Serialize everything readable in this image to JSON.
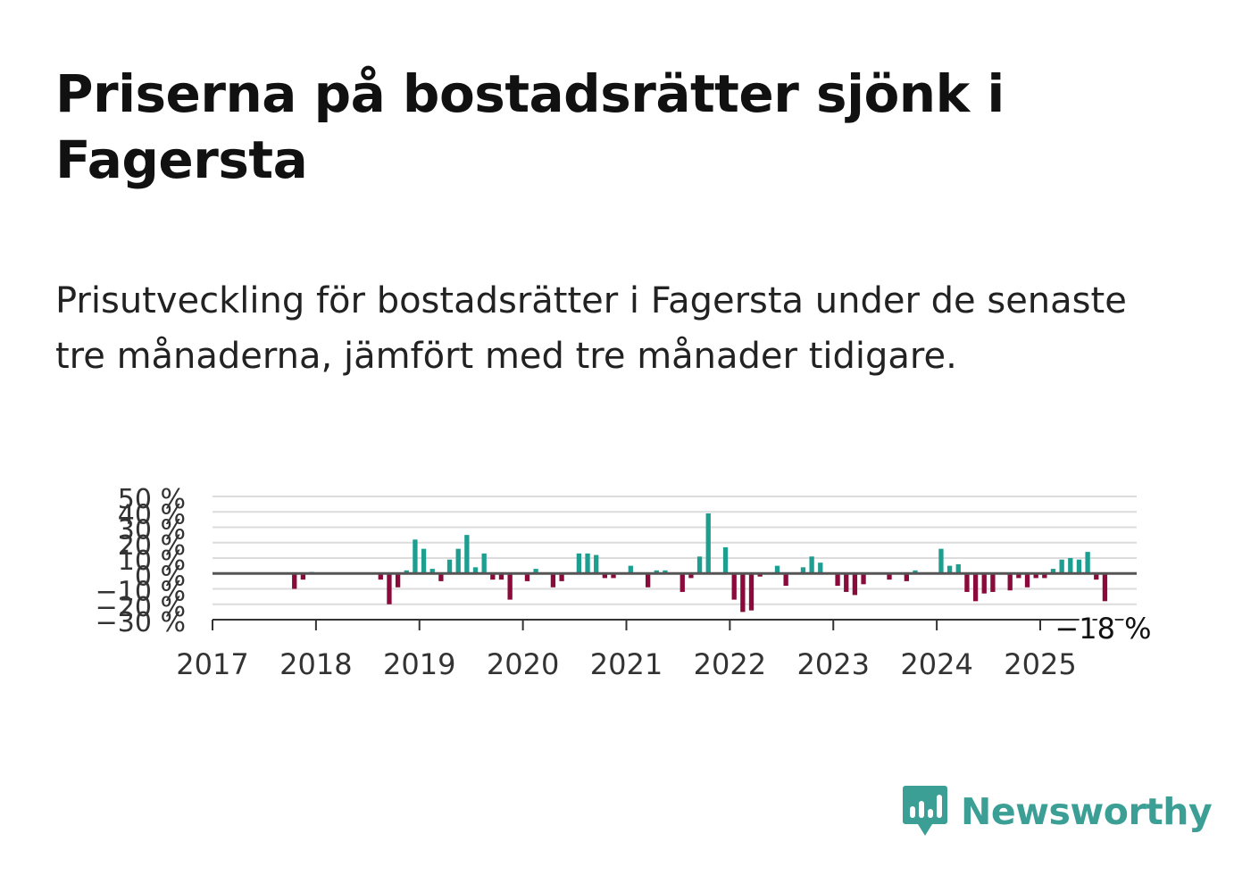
{
  "header": {
    "title": "Priserna på bostadsrätter sjönk i Fagersta",
    "subtitle": "Prisutveckling för bostadsrätter i Fagersta under de senaste tre månaderna, jämfört med tre månader tidigare."
  },
  "brand": {
    "name": "Newsworthy",
    "icon": "newsworthy-logo-icon",
    "color": "#3c9f95"
  },
  "colors": {
    "positive": "#1e9e91",
    "negative": "#8a0a3c",
    "grid": "#dcdcdc",
    "zero_line": "#555555"
  },
  "chart_data": {
    "type": "bar",
    "x_unit": "month",
    "x_start": "2017-01",
    "x_ticks": [
      "2017",
      "2018",
      "2019",
      "2020",
      "2021",
      "2022",
      "2023",
      "2024",
      "2025"
    ],
    "y_ticks": [
      "50 %",
      "40 %",
      "30 %",
      "20 %",
      "10 %",
      "0 %",
      "−10 %",
      "−20 %",
      "−30 %"
    ],
    "ylim": [
      -30,
      50
    ],
    "grid": true,
    "last_label": "−18 %",
    "series": [
      {
        "points": [
          {
            "x": "2017-10",
            "y": -10
          },
          {
            "x": "2017-11",
            "y": -4
          },
          {
            "x": "2017-12",
            "y": 1
          },
          {
            "x": "2018-08",
            "y": -4
          },
          {
            "x": "2018-09",
            "y": -20
          },
          {
            "x": "2018-10",
            "y": -9
          },
          {
            "x": "2018-11",
            "y": 2
          },
          {
            "x": "2018-12",
            "y": 22
          },
          {
            "x": "2019-01",
            "y": 16
          },
          {
            "x": "2019-02",
            "y": 3
          },
          {
            "x": "2019-03",
            "y": -5
          },
          {
            "x": "2019-04",
            "y": 9
          },
          {
            "x": "2019-05",
            "y": 16
          },
          {
            "x": "2019-06",
            "y": 25
          },
          {
            "x": "2019-07",
            "y": 4
          },
          {
            "x": "2019-08",
            "y": 13
          },
          {
            "x": "2019-09",
            "y": -4
          },
          {
            "x": "2019-10",
            "y": -4
          },
          {
            "x": "2019-11",
            "y": -17
          },
          {
            "x": "2020-01",
            "y": -5
          },
          {
            "x": "2020-02",
            "y": 3
          },
          {
            "x": "2020-04",
            "y": -9
          },
          {
            "x": "2020-05",
            "y": -5
          },
          {
            "x": "2020-07",
            "y": 13
          },
          {
            "x": "2020-08",
            "y": 13
          },
          {
            "x": "2020-09",
            "y": 12
          },
          {
            "x": "2020-10",
            "y": -3
          },
          {
            "x": "2020-11",
            "y": -3
          },
          {
            "x": "2021-01",
            "y": 5
          },
          {
            "x": "2021-03",
            "y": -9
          },
          {
            "x": "2021-04",
            "y": 2
          },
          {
            "x": "2021-05",
            "y": 2
          },
          {
            "x": "2021-07",
            "y": -12
          },
          {
            "x": "2021-08",
            "y": -3
          },
          {
            "x": "2021-09",
            "y": 11
          },
          {
            "x": "2021-10",
            "y": 39
          },
          {
            "x": "2021-12",
            "y": 17
          },
          {
            "x": "2022-01",
            "y": -17
          },
          {
            "x": "2022-02",
            "y": -25
          },
          {
            "x": "2022-03",
            "y": -24
          },
          {
            "x": "2022-04",
            "y": -2
          },
          {
            "x": "2022-06",
            "y": 5
          },
          {
            "x": "2022-07",
            "y": -8
          },
          {
            "x": "2022-09",
            "y": 4
          },
          {
            "x": "2022-10",
            "y": 11
          },
          {
            "x": "2022-11",
            "y": 7
          },
          {
            "x": "2023-01",
            "y": -8
          },
          {
            "x": "2023-02",
            "y": -12
          },
          {
            "x": "2023-03",
            "y": -14
          },
          {
            "x": "2023-04",
            "y": -7
          },
          {
            "x": "2023-07",
            "y": -4
          },
          {
            "x": "2023-09",
            "y": -5
          },
          {
            "x": "2023-10",
            "y": 2
          },
          {
            "x": "2024-01",
            "y": 16
          },
          {
            "x": "2024-02",
            "y": 5
          },
          {
            "x": "2024-03",
            "y": 6
          },
          {
            "x": "2024-04",
            "y": -12
          },
          {
            "x": "2024-05",
            "y": -18
          },
          {
            "x": "2024-06",
            "y": -13
          },
          {
            "x": "2024-07",
            "y": -12
          },
          {
            "x": "2024-09",
            "y": -11
          },
          {
            "x": "2024-10",
            "y": -3
          },
          {
            "x": "2024-11",
            "y": -9
          },
          {
            "x": "2024-12",
            "y": -3
          },
          {
            "x": "2025-01",
            "y": -3
          },
          {
            "x": "2025-02",
            "y": 3
          },
          {
            "x": "2025-03",
            "y": 9
          },
          {
            "x": "2025-04",
            "y": 10
          },
          {
            "x": "2025-05",
            "y": 9
          },
          {
            "x": "2025-06",
            "y": 14
          },
          {
            "x": "2025-07",
            "y": -4
          },
          {
            "x": "2025-08",
            "y": -18
          }
        ]
      }
    ]
  }
}
